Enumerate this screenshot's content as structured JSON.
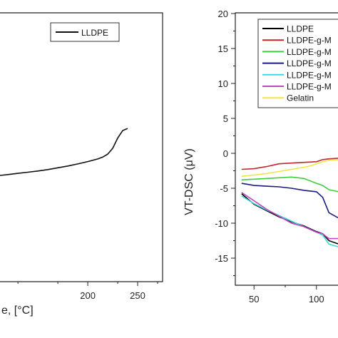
{
  "chart_data": [
    {
      "type": "line",
      "xlabel": "e, [°C]",
      "ylabel": "",
      "xlim": [
        112,
        275
      ],
      "x_ticks": [
        "200",
        "250"
      ],
      "tick_values": [
        200,
        250
      ],
      "legend": "top-right",
      "series": [
        {
          "name": "LLDPE",
          "color": "#111111",
          "x": [
            112,
            120,
            130,
            140,
            150,
            160,
            170,
            180,
            190,
            200,
            210,
            215,
            220,
            225,
            230,
            235,
            240
          ],
          "y": [
            0.0,
            0.06,
            0.14,
            0.22,
            0.3,
            0.4,
            0.52,
            0.64,
            0.78,
            0.94,
            1.12,
            1.25,
            1.45,
            1.85,
            2.55,
            3.05,
            3.2
          ]
        }
      ]
    },
    {
      "type": "line",
      "ylabel": "VT-DSC (μV)",
      "xlim": [
        35,
        118
      ],
      "ylim": [
        -17,
        20
      ],
      "x_ticks": [
        "50",
        "100"
      ],
      "x_tick_values": [
        50,
        100
      ],
      "y_ticks": [
        "20",
        "15",
        "10",
        "5",
        "0",
        "-5",
        "-10",
        "-15"
      ],
      "y_tick_values": [
        20,
        15,
        10,
        5,
        0,
        -5,
        -10,
        -15
      ],
      "legend": "top-right",
      "series": [
        {
          "name": "LLDPE",
          "color": "#000000",
          "x": [
            40,
            50,
            60,
            70,
            80,
            90,
            100,
            105,
            110,
            118
          ],
          "y": [
            -5.8,
            -7.3,
            -8.2,
            -9.1,
            -9.8,
            -10.4,
            -11.2,
            -11.5,
            -12.5,
            -13.0
          ]
        },
        {
          "name": "LLDPE-g-M",
          "color": "#c0282d",
          "x": [
            40,
            50,
            60,
            70,
            80,
            90,
            100,
            105,
            110,
            118
          ],
          "y": [
            -2.3,
            -2.2,
            -1.9,
            -1.5,
            -1.4,
            -1.3,
            -1.2,
            -0.9,
            -0.8,
            -0.7
          ]
        },
        {
          "name": "LLDPE-g-M",
          "color": "#3ecf3e",
          "x": [
            40,
            50,
            60,
            70,
            80,
            90,
            100,
            105,
            110,
            118
          ],
          "y": [
            -3.8,
            -3.7,
            -3.6,
            -3.5,
            -3.4,
            -3.6,
            -4.3,
            -4.6,
            -5.2,
            -5.5
          ]
        },
        {
          "name": "LLDPE-g-M",
          "color": "#1a1a80",
          "x": [
            40,
            50,
            60,
            70,
            80,
            90,
            100,
            105,
            110,
            118
          ],
          "y": [
            -4.3,
            -4.6,
            -4.7,
            -4.8,
            -5.0,
            -5.3,
            -5.5,
            -6.3,
            -8.5,
            -9.3
          ]
        },
        {
          "name": "LLDPE-g-M",
          "color": "#40d8d8",
          "x": [
            40,
            50,
            60,
            70,
            80,
            90,
            100,
            105,
            110,
            118
          ],
          "y": [
            -6.1,
            -7.2,
            -8.1,
            -8.9,
            -9.7,
            -10.5,
            -11.3,
            -11.7,
            -13.0,
            -13.4
          ]
        },
        {
          "name": "LLDPE-g-M",
          "color": "#c048c0",
          "x": [
            40,
            50,
            60,
            70,
            80,
            90,
            100,
            105,
            110,
            118
          ],
          "y": [
            -5.6,
            -6.8,
            -8.0,
            -9.0,
            -10.0,
            -10.5,
            -11.3,
            -11.5,
            -12.2,
            -12.2
          ]
        },
        {
          "name": "Gelatin",
          "color": "#f0e64a",
          "x": [
            40,
            50,
            60,
            70,
            80,
            90,
            95,
            100,
            105,
            110,
            118
          ],
          "y": [
            -3.3,
            -3.1,
            -2.9,
            -2.6,
            -2.3,
            -2.0,
            -1.8,
            -1.5,
            -1.2,
            -1.0,
            -0.9
          ]
        }
      ]
    }
  ]
}
